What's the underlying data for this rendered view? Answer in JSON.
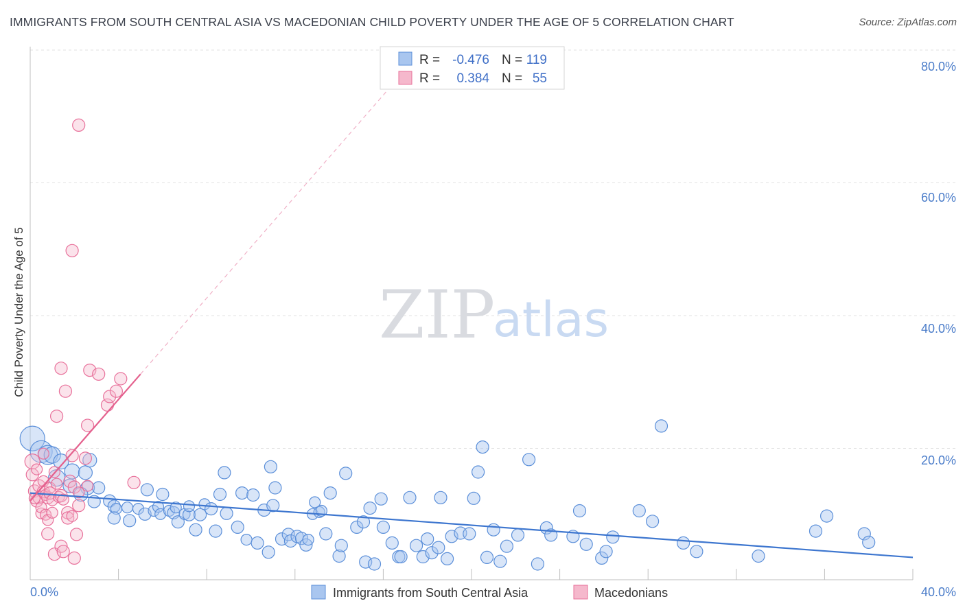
{
  "title": "IMMIGRANTS FROM SOUTH CENTRAL ASIA VS MACEDONIAN CHILD POVERTY UNDER THE AGE OF 5 CORRELATION CHART",
  "source": "Source: ZipAtlas.com",
  "watermark": {
    "zip": "ZIP",
    "atlas": "atlas"
  },
  "colors": {
    "blue": "#5b8fd9",
    "blue_fill": "#a9c6ef",
    "pink": "#e8709a",
    "pink_fill": "#f5b8cc",
    "tick": "#4a7cc9"
  },
  "stats_box": {
    "rows": [
      {
        "r_label": "R =",
        "r_value": "-0.476",
        "n_label": "N =",
        "n_value": "119"
      },
      {
        "r_label": "R =",
        "r_value": "0.384",
        "n_label": "N =",
        "n_value": "55"
      }
    ]
  },
  "chart_data": {
    "type": "scatter",
    "title": "IMMIGRANTS FROM SOUTH CENTRAL ASIA VS MACEDONIAN CHILD POVERTY UNDER THE AGE OF 5 CORRELATION CHART",
    "xlabel": "",
    "ylabel": "Child Poverty Under the Age of 5",
    "xlim": [
      0,
      40
    ],
    "ylim": [
      0,
      82
    ],
    "x_tick_labels": [
      {
        "value": 0,
        "label": "0.0%"
      },
      {
        "value": 40,
        "label": "40.0%"
      }
    ],
    "y_tick_labels": [
      {
        "value": 20,
        "label": "20.0%"
      },
      {
        "value": 40,
        "label": "40.0%"
      },
      {
        "value": 60,
        "label": "60.0%"
      },
      {
        "value": 80,
        "label": "80.0%"
      }
    ],
    "grid": true,
    "legend_position": "bottom-center",
    "series": [
      {
        "name": "Immigrants from South Central Asia",
        "color": "#5b8fd9",
        "trend": {
          "x": [
            0,
            40
          ],
          "y": [
            13.2,
            3.4
          ]
        },
        "points": [
          [
            0.1,
            21.5,
            18
          ],
          [
            0.5,
            19.5,
            16
          ],
          [
            0.8,
            19,
            14
          ],
          [
            1.0,
            19,
            12
          ],
          [
            1.4,
            18,
            11
          ],
          [
            1.2,
            15.5,
            12
          ],
          [
            1.9,
            16.5,
            11
          ],
          [
            2.5,
            16.3,
            10
          ],
          [
            2.7,
            18.2,
            10
          ],
          [
            1.8,
            14.3,
            10
          ],
          [
            2.6,
            14,
            10
          ],
          [
            3.1,
            14,
            9
          ],
          [
            2.3,
            13,
            10
          ],
          [
            3.6,
            12,
            9
          ],
          [
            2.9,
            11.9,
            9
          ],
          [
            3.8,
            11.2,
            9
          ],
          [
            3.9,
            10.8,
            8
          ],
          [
            3.8,
            9.4,
            9
          ],
          [
            4.4,
            11,
            8
          ],
          [
            4.5,
            9,
            9
          ],
          [
            4.9,
            10.8,
            8
          ],
          [
            5.3,
            13.7,
            9
          ],
          [
            5.2,
            10,
            9
          ],
          [
            5.6,
            10.5,
            8
          ],
          [
            5.8,
            11.1,
            8
          ],
          [
            5.9,
            10,
            8
          ],
          [
            6.0,
            13,
            9
          ],
          [
            6.3,
            10.5,
            8
          ],
          [
            6.5,
            10.2,
            9
          ],
          [
            6.6,
            11,
            8
          ],
          [
            6.7,
            8.8,
            9
          ],
          [
            7.0,
            10,
            8
          ],
          [
            7.2,
            9.9,
            9
          ],
          [
            7.2,
            11.2,
            8
          ],
          [
            7.5,
            7.6,
            9
          ],
          [
            7.7,
            9.9,
            9
          ],
          [
            7.9,
            11.5,
            8
          ],
          [
            8.2,
            10.8,
            9
          ],
          [
            8.4,
            7.4,
            9
          ],
          [
            8.6,
            13,
            9
          ],
          [
            8.8,
            16.3,
            9
          ],
          [
            8.9,
            10.1,
            9
          ],
          [
            9.4,
            8,
            9
          ],
          [
            9.6,
            13.2,
            9
          ],
          [
            9.8,
            6.1,
            8
          ],
          [
            10.1,
            12.9,
            9
          ],
          [
            10.3,
            5.6,
            9
          ],
          [
            10.6,
            10.6,
            9
          ],
          [
            10.8,
            4.2,
            9
          ],
          [
            11.0,
            11.3,
            9
          ],
          [
            10.9,
            17.2,
            9
          ],
          [
            11.1,
            14,
            9
          ],
          [
            11.4,
            6.2,
            9
          ],
          [
            11.7,
            6.9,
            9
          ],
          [
            11.8,
            5.9,
            9
          ],
          [
            12.1,
            6.6,
            9
          ],
          [
            12.3,
            6.3,
            9
          ],
          [
            12.5,
            5.3,
            9
          ],
          [
            12.8,
            10,
            8
          ],
          [
            12.6,
            6.1,
            8
          ],
          [
            12.9,
            11.8,
            8
          ],
          [
            13.1,
            10.3,
            8
          ],
          [
            13.2,
            10.5,
            8
          ],
          [
            13.4,
            7,
            9
          ],
          [
            13.6,
            13.2,
            9
          ],
          [
            14.0,
            3.6,
            9
          ],
          [
            14.1,
            5.2,
            9
          ],
          [
            14.3,
            16.2,
            9
          ],
          [
            14.8,
            8,
            9
          ],
          [
            15.1,
            8.8,
            9
          ],
          [
            15.2,
            2.7,
            9
          ],
          [
            15.4,
            10.9,
            9
          ],
          [
            15.6,
            2.4,
            9
          ],
          [
            15.9,
            12.3,
            9
          ],
          [
            16.0,
            8,
            9
          ],
          [
            16.4,
            5.6,
            9
          ],
          [
            16.7,
            3.5,
            9
          ],
          [
            16.8,
            3.5,
            9
          ],
          [
            17.2,
            12.5,
            9
          ],
          [
            17.5,
            5.2,
            9
          ],
          [
            17.8,
            3.5,
            9
          ],
          [
            18.0,
            6.2,
            9
          ],
          [
            18.2,
            4.1,
            9
          ],
          [
            18.5,
            4.9,
            9
          ],
          [
            18.6,
            12.5,
            9
          ],
          [
            18.9,
            3.2,
            9
          ],
          [
            19.1,
            6.6,
            9
          ],
          [
            19.5,
            7.1,
            9
          ],
          [
            19.9,
            7,
            9
          ],
          [
            20.1,
            12.4,
            9
          ],
          [
            20.3,
            16.4,
            9
          ],
          [
            20.5,
            20.2,
            9
          ],
          [
            20.7,
            3.4,
            9
          ],
          [
            21.0,
            7.6,
            9
          ],
          [
            21.3,
            2.8,
            9
          ],
          [
            21.6,
            5.1,
            9
          ],
          [
            22.1,
            6.8,
            9
          ],
          [
            22.6,
            18.3,
            9
          ],
          [
            23.0,
            2.4,
            9
          ],
          [
            23.4,
            7.9,
            9
          ],
          [
            23.6,
            6.8,
            9
          ],
          [
            24.6,
            6.6,
            9
          ],
          [
            24.9,
            10.5,
            9
          ],
          [
            25.2,
            5.4,
            9
          ],
          [
            25.9,
            3.3,
            9
          ],
          [
            26.1,
            4.3,
            9
          ],
          [
            26.4,
            6.5,
            9
          ],
          [
            27.6,
            10.5,
            9
          ],
          [
            28.2,
            8.9,
            9
          ],
          [
            28.6,
            23.4,
            9
          ],
          [
            29.6,
            5.6,
            9
          ],
          [
            30.2,
            4.3,
            9
          ],
          [
            33.0,
            3.6,
            9
          ],
          [
            35.6,
            7.4,
            9
          ],
          [
            36.1,
            9.7,
            9
          ],
          [
            37.8,
            7,
            9
          ],
          [
            38.0,
            5.7,
            9
          ]
        ]
      },
      {
        "name": "Macedonians",
        "color": "#e8709a",
        "trend": {
          "x": [
            0,
            5.0
          ],
          "y": [
            12.0,
            31.3
          ]
        },
        "trend_extension": {
          "x": [
            5.0,
            16.5
          ],
          "y": [
            31.3,
            75.7
          ]
        },
        "points": [
          [
            0.1,
            18,
            11
          ],
          [
            0.1,
            16,
            9
          ],
          [
            0.2,
            13.5,
            9
          ],
          [
            0.3,
            12,
            9
          ],
          [
            0.4,
            14.3,
            9
          ],
          [
            0.4,
            12.5,
            9
          ],
          [
            0.5,
            10.1,
            8
          ],
          [
            0.5,
            11,
            8
          ],
          [
            0.6,
            13.4,
            9
          ],
          [
            0.6,
            15,
            8
          ],
          [
            0.7,
            12.9,
            8
          ],
          [
            0.7,
            9.9,
            8
          ],
          [
            0.8,
            12.5,
            9
          ],
          [
            0.8,
            7,
            9
          ],
          [
            0.8,
            9.1,
            8
          ],
          [
            0.9,
            14,
            8
          ],
          [
            0.9,
            13.2,
            9
          ],
          [
            1.0,
            12.1,
            8
          ],
          [
            1.0,
            10.2,
            8
          ],
          [
            1.1,
            3.9,
            9
          ],
          [
            1.1,
            16.4,
            8
          ],
          [
            1.2,
            24.9,
            9
          ],
          [
            1.2,
            14.6,
            8
          ],
          [
            1.3,
            12.6,
            8
          ],
          [
            1.4,
            12.8,
            9
          ],
          [
            1.4,
            32.2,
            9
          ],
          [
            1.4,
            5.1,
            9
          ],
          [
            1.5,
            4.3,
            9
          ],
          [
            1.6,
            28.7,
            9
          ],
          [
            1.7,
            10.2,
            9
          ],
          [
            1.7,
            9.4,
            9
          ],
          [
            1.8,
            15,
            9
          ],
          [
            1.9,
            50.1,
            9
          ],
          [
            1.9,
            9.7,
            8
          ],
          [
            1.9,
            18.9,
            9
          ],
          [
            2.0,
            14.1,
            9
          ],
          [
            2.0,
            3.3,
            9
          ],
          [
            2.1,
            6.9,
            9
          ],
          [
            2.2,
            13.3,
            8
          ],
          [
            2.2,
            11.3,
            9
          ],
          [
            2.2,
            69.2,
            9
          ],
          [
            2.5,
            18.5,
            9
          ],
          [
            2.6,
            23.5,
            9
          ],
          [
            2.6,
            14.3,
            8
          ],
          [
            2.7,
            31.9,
            9
          ],
          [
            3.1,
            31.3,
            9
          ],
          [
            3.5,
            26.6,
            9
          ],
          [
            3.6,
            27.9,
            9
          ],
          [
            3.9,
            28.7,
            9
          ],
          [
            4.1,
            30.6,
            9
          ],
          [
            4.7,
            14.8,
            9
          ],
          [
            0.2,
            12.4,
            8
          ],
          [
            0.3,
            16.8,
            8
          ],
          [
            0.6,
            19.2,
            8
          ],
          [
            1.5,
            12.2,
            8
          ]
        ]
      }
    ]
  }
}
